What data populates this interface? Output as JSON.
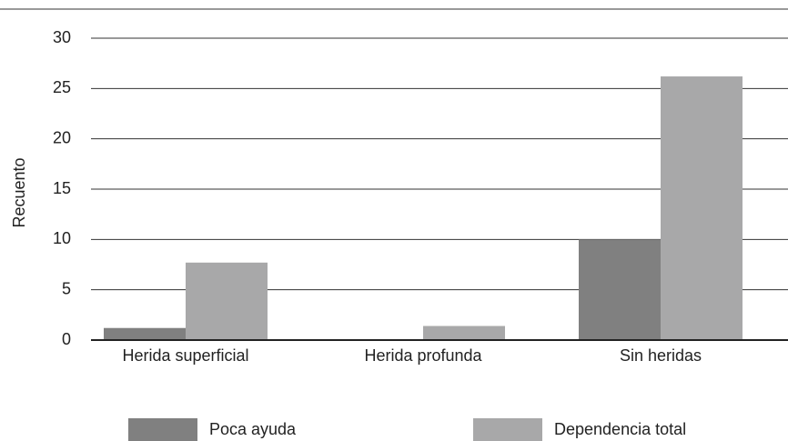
{
  "chart_data": {
    "type": "bar",
    "y_label": "Recuento",
    "categories": [
      "Herida superficial",
      "Herida profunda",
      "Sin heridas"
    ],
    "series": [
      {
        "name": "Poca ayuda",
        "color": "#808080",
        "values": [
          1.2,
          0,
          10
        ]
      },
      {
        "name": "Dependencia total",
        "color": "#a8a8a9",
        "values": [
          7.7,
          1.4,
          26.2
        ]
      }
    ],
    "ylim": [
      0,
      30
    ],
    "yticks": [
      0,
      5,
      10,
      15,
      20,
      25,
      30
    ],
    "grid": true,
    "legend": "bottom"
  }
}
